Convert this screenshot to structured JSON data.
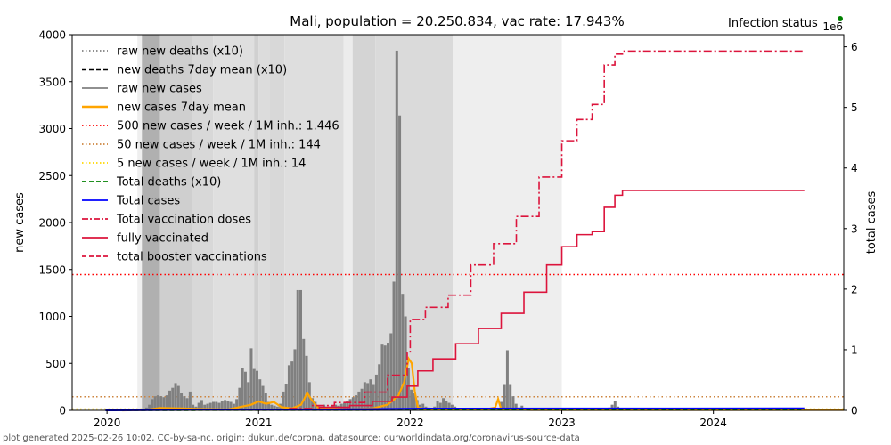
{
  "chart_data": {
    "type": "bar",
    "title": "Mali, population = 20.250.834, vac rate: 17.943%",
    "status_label": "Infection status",
    "status_color": "#008000",
    "right_axis_multiplier": "1e6",
    "xlabel": "",
    "ylabel": "new cases",
    "y2label": "total cases",
    "xlim": [
      2019.77,
      2024.86
    ],
    "ylim": [
      0,
      4000
    ],
    "y2lim": [
      0,
      6.2
    ],
    "grid": false,
    "legend_position": "top-left",
    "x_ticks": [
      {
        "value": 2020,
        "label": "2020"
      },
      {
        "value": 2021,
        "label": "2021"
      },
      {
        "value": 2022,
        "label": "2022"
      },
      {
        "value": 2023,
        "label": "2023"
      },
      {
        "value": 2024,
        "label": "2024"
      }
    ],
    "y_ticks": [
      {
        "value": 0,
        "label": "0"
      },
      {
        "value": 500,
        "label": "500"
      },
      {
        "value": 1000,
        "label": "1000"
      },
      {
        "value": 1500,
        "label": "1500"
      },
      {
        "value": 2000,
        "label": "2000"
      },
      {
        "value": 2500,
        "label": "2500"
      },
      {
        "value": 3000,
        "label": "3000"
      },
      {
        "value": 3500,
        "label": "3500"
      },
      {
        "value": 4000,
        "label": "4000"
      }
    ],
    "y2_ticks": [
      {
        "value": 0,
        "label": "0"
      },
      {
        "value": 1,
        "label": "1"
      },
      {
        "value": 2,
        "label": "2"
      },
      {
        "value": 3,
        "label": "3"
      },
      {
        "value": 4,
        "label": "4"
      },
      {
        "value": 5,
        "label": "5"
      },
      {
        "value": 6,
        "label": "6"
      }
    ],
    "legend": [
      {
        "label": "raw new deaths (x10)",
        "color": "#808080",
        "style": "dotted"
      },
      {
        "label": "new deaths 7day mean (x10)",
        "color": "#000000",
        "style": "dashed"
      },
      {
        "label": "raw new cases",
        "color": "#808080",
        "style": "solid"
      },
      {
        "label": "new cases 7day mean",
        "color": "#ffa500",
        "style": "solid-thick"
      },
      {
        "label": "500 new cases / week / 1M inh.: 1.446",
        "color": "#ff0000",
        "style": "dotted"
      },
      {
        "label": "50 new cases / week / 1M inh.: 144",
        "color": "#cd853f",
        "style": "dotted"
      },
      {
        "label": "5 new cases / week / 1M inh.: 14",
        "color": "#ffd700",
        "style": "dotted"
      },
      {
        "label": "Total deaths (x10)",
        "color": "#008000",
        "style": "dashed"
      },
      {
        "label": "Total cases",
        "color": "#0000ff",
        "style": "solid"
      },
      {
        "label": "Total vaccination doses",
        "color": "#dc143c",
        "style": "dashdot"
      },
      {
        "label": "fully vaccinated",
        "color": "#dc143c",
        "style": "solid"
      },
      {
        "label": "total booster vaccinations",
        "color": "#dc143c",
        "style": "dashed"
      }
    ],
    "thresholds": [
      {
        "name": "500-per-week",
        "value": 1446,
        "color": "#ff0000"
      },
      {
        "name": "50-per-week",
        "value": 144,
        "color": "#cd853f"
      },
      {
        "name": "5-per-week",
        "value": 14,
        "color": "#ffd700"
      }
    ],
    "background_bands": [
      {
        "x0": 2020.2,
        "x1": 2020.23,
        "shade": "#efefef"
      },
      {
        "x0": 2020.23,
        "x1": 2020.35,
        "shade": "#b0b0b0"
      },
      {
        "x0": 2020.35,
        "x1": 2020.56,
        "shade": "#cfcfcf"
      },
      {
        "x0": 2020.56,
        "x1": 2020.7,
        "shade": "#d8d8d8"
      },
      {
        "x0": 2020.7,
        "x1": 2020.97,
        "shade": "#dfdfdf"
      },
      {
        "x0": 2020.97,
        "x1": 2021.0,
        "shade": "#d0d0d0"
      },
      {
        "x0": 2021.0,
        "x1": 2021.07,
        "shade": "#dcdcdc"
      },
      {
        "x0": 2021.07,
        "x1": 2021.17,
        "shade": "#d8d8d8"
      },
      {
        "x0": 2021.17,
        "x1": 2021.56,
        "shade": "#dedede"
      },
      {
        "x0": 2021.56,
        "x1": 2021.62,
        "shade": "#ececec"
      },
      {
        "x0": 2021.62,
        "x1": 2021.77,
        "shade": "#d4d4d4"
      },
      {
        "x0": 2021.77,
        "x1": 2022.28,
        "shade": "#dadada"
      },
      {
        "x0": 2022.28,
        "x1": 2023.0,
        "shade": "#eeeeee"
      }
    ],
    "raw_new_cases": {
      "start": 2020.26,
      "step_years": 0.0192,
      "values": [
        30,
        60,
        120,
        150,
        160,
        150,
        140,
        160,
        210,
        240,
        290,
        260,
        180,
        150,
        130,
        200,
        60,
        40,
        80,
        110,
        60,
        70,
        80,
        90,
        90,
        80,
        100,
        110,
        100,
        90,
        70,
        120,
        240,
        450,
        410,
        300,
        660,
        440,
        420,
        330,
        260,
        180,
        90,
        60,
        50,
        40,
        70,
        200,
        280,
        480,
        520,
        650,
        1280,
        1280,
        760,
        580,
        300,
        130,
        90,
        50,
        40,
        60,
        30,
        40,
        50,
        60,
        50,
        70,
        80,
        100,
        120,
        140,
        160,
        200,
        230,
        300,
        290,
        330,
        270,
        380,
        490,
        700,
        690,
        720,
        820,
        1370,
        3830,
        3140,
        1240,
        1000,
        450,
        220,
        180,
        110,
        60,
        70,
        40,
        30,
        20,
        40,
        100,
        80,
        130,
        100,
        80,
        60,
        40,
        25,
        15,
        10,
        10,
        10,
        10,
        10,
        10,
        10,
        5,
        10,
        10,
        5,
        10,
        20,
        90,
        270,
        640,
        270,
        150,
        70,
        30,
        50,
        10,
        5,
        5,
        5,
        5,
        5,
        5,
        5,
        5,
        5,
        5,
        5,
        5,
        5,
        5,
        5,
        5,
        5,
        5,
        5,
        5,
        5,
        5,
        5,
        5,
        5,
        5,
        5,
        5,
        30,
        60,
        100,
        40,
        10,
        20,
        5
      ]
    },
    "new_cases_7day_mean": {
      "points": [
        [
          2020.1,
          0
        ],
        [
          2020.26,
          5
        ],
        [
          2020.35,
          25
        ],
        [
          2020.5,
          20
        ],
        [
          2020.6,
          15
        ],
        [
          2020.8,
          10
        ],
        [
          2020.95,
          60
        ],
        [
          2021.0,
          95
        ],
        [
          2021.05,
          70
        ],
        [
          2021.1,
          90
        ],
        [
          2021.15,
          35
        ],
        [
          2021.22,
          20
        ],
        [
          2021.28,
          60
        ],
        [
          2021.3,
          120
        ],
        [
          2021.32,
          185
        ],
        [
          2021.35,
          110
        ],
        [
          2021.4,
          15
        ],
        [
          2021.6,
          10
        ],
        [
          2021.75,
          20
        ],
        [
          2021.85,
          60
        ],
        [
          2021.92,
          150
        ],
        [
          2021.96,
          300
        ],
        [
          2021.99,
          550
        ],
        [
          2022.01,
          500
        ],
        [
          2022.03,
          200
        ],
        [
          2022.05,
          30
        ],
        [
          2022.1,
          10
        ],
        [
          2022.5,
          10
        ],
        [
          2022.56,
          30
        ],
        [
          2022.58,
          120
        ],
        [
          2022.6,
          10
        ],
        [
          2022.8,
          5
        ],
        [
          2023.0,
          5
        ],
        [
          2024.86,
          5
        ]
      ]
    },
    "total_cases_millions": {
      "points": [
        [
          2019.99,
          0
        ],
        [
          2020.4,
          0.005
        ],
        [
          2021.0,
          0.01
        ],
        [
          2021.5,
          0.015
        ],
        [
          2022.1,
          0.03
        ],
        [
          2024.6,
          0.033
        ]
      ]
    },
    "total_vaccination_doses_millions": {
      "points": [
        [
          2021.2,
          0.03
        ],
        [
          2021.35,
          0.08
        ],
        [
          2021.5,
          0.13
        ],
        [
          2021.7,
          0.3
        ],
        [
          2021.85,
          0.58
        ],
        [
          2021.98,
          0.95
        ],
        [
          2022.0,
          1.5
        ],
        [
          2022.1,
          1.7
        ],
        [
          2022.25,
          1.9
        ],
        [
          2022.4,
          2.4
        ],
        [
          2022.55,
          2.75
        ],
        [
          2022.7,
          3.2
        ],
        [
          2022.85,
          3.85
        ],
        [
          2023.0,
          4.45
        ],
        [
          2023.1,
          4.8
        ],
        [
          2023.2,
          5.05
        ],
        [
          2023.28,
          5.7
        ],
        [
          2023.35,
          5.88
        ],
        [
          2023.4,
          5.93
        ],
        [
          2024.6,
          5.93
        ]
      ]
    },
    "fully_vaccinated_millions": {
      "points": [
        [
          2021.2,
          0.02
        ],
        [
          2021.4,
          0.05
        ],
        [
          2021.6,
          0.08
        ],
        [
          2021.75,
          0.15
        ],
        [
          2021.88,
          0.22
        ],
        [
          2021.98,
          0.4
        ],
        [
          2022.05,
          0.65
        ],
        [
          2022.15,
          0.85
        ],
        [
          2022.3,
          1.1
        ],
        [
          2022.45,
          1.35
        ],
        [
          2022.6,
          1.6
        ],
        [
          2022.75,
          1.95
        ],
        [
          2022.9,
          2.4
        ],
        [
          2023.0,
          2.7
        ],
        [
          2023.1,
          2.9
        ],
        [
          2023.2,
          2.95
        ],
        [
          2023.28,
          3.35
        ],
        [
          2023.35,
          3.55
        ],
        [
          2023.4,
          3.63
        ],
        [
          2024.6,
          3.63
        ]
      ]
    },
    "total_deaths_x10_millions": {
      "points": [
        [
          2019.99,
          0
        ],
        [
          2024.6,
          0.007
        ]
      ]
    }
  },
  "footer": "plot generated 2025-02-26 10:02, CC-by-sa-nc, origin: dukun.de/corona, datasource: ourworldindata.org/coronavirus-source-data"
}
